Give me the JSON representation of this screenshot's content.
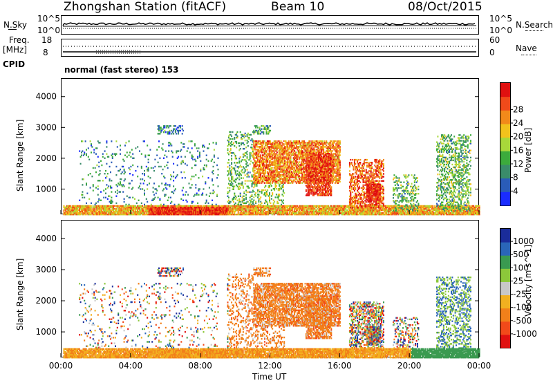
{
  "header": {
    "station": "Zhongshan Station (fitACF)",
    "beam": "Beam 10",
    "date": "08/Oct/2015"
  },
  "strips": {
    "nsky_label": "N.Sky",
    "nsky_top": "10^5",
    "nsky_bottom": "10^0",
    "nsearch_label": "N.Search",
    "nsearch_top": "10^5",
    "nsearch_bottom": "10^0",
    "freq_label": "Freq.",
    "freq_unit": "[MHz]",
    "freq_top": "18",
    "freq_bottom": "8",
    "nave_label": "Nave",
    "nave_top": "60",
    "nave_bottom": "0",
    "cpid_label": "CPID",
    "cpid_value": "normal (fast stereo) 153"
  },
  "colors": {
    "power": [
      "#1a2cff",
      "#2a5cb8",
      "#3a8c6a",
      "#3cab3c",
      "#a8d83a",
      "#f2c21c",
      "#f28a1a",
      "#f04a1a",
      "#e01010"
    ],
    "velocity": [
      "#e01010",
      "#f24a1a",
      "#f2801a",
      "#f2b020",
      "#c8c8c8",
      "#8cc83a",
      "#3a9a50",
      "#2a66b8",
      "#1a2c9a"
    ]
  },
  "chart_data": [
    {
      "type": "heatmap",
      "name": "power",
      "xlabel": "",
      "ylabel": "Slant Range [km]",
      "x_ticks": [
        "00:00",
        "04:00",
        "08:00",
        "12:00",
        "16:00",
        "20:00",
        "00:00"
      ],
      "y_ticks": [
        "1000",
        "2000",
        "3000",
        "4000"
      ],
      "xlim_hours": [
        0,
        24
      ],
      "ylim_km": [
        180,
        4600
      ],
      "colorbar_label": "Power [dB]",
      "colorbar_ticks": [
        "4",
        "8",
        "12",
        "16",
        "20",
        "24",
        "28"
      ],
      "colorbar_range": [
        0,
        30
      ]
    },
    {
      "type": "heatmap",
      "name": "velocity",
      "xlabel": "Time UT",
      "ylabel": "Slant Range [km]",
      "x_ticks": [
        "00:00",
        "04:00",
        "08:00",
        "12:00",
        "16:00",
        "20:00",
        "00:00"
      ],
      "y_ticks": [
        "1000",
        "2000",
        "3000",
        "4000"
      ],
      "xlim_hours": [
        0,
        24
      ],
      "ylim_km": [
        180,
        4600
      ],
      "colorbar_label": "Velocity [m s^-1]",
      "colorbar_ticks": [
        "1000",
        "500",
        "100",
        "25",
        "-25",
        "-100",
        "-500",
        "-1000"
      ]
    }
  ]
}
